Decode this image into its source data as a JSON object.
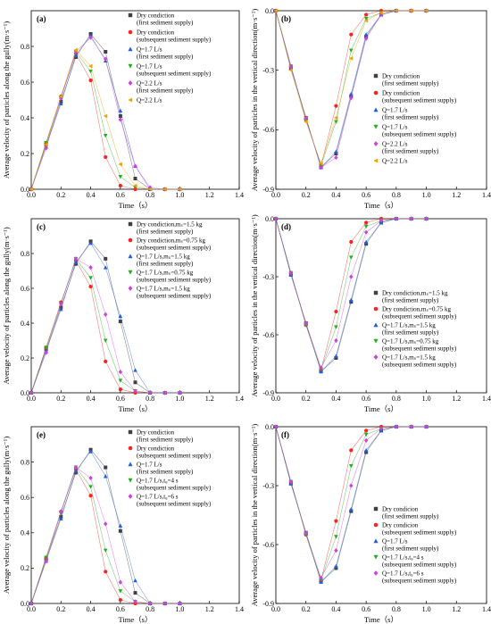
{
  "figure": {
    "x_axis_label": "Time（s）",
    "y_axis_label_left": "Average velocity of particles along the gully(m·s⁻¹)",
    "y_axis_label_right": "Average velocity of particles in the vertical direction(m·s⁻¹)"
  },
  "colors": {
    "dry_first": "#404040",
    "dry_subsequent": "#ff2020",
    "q17_first": "#1f5fe0",
    "q17_subsequent": "#20b020",
    "q22_first": "#d040e0",
    "q22_subsequent": "#f0a000",
    "q17_tg6": "#d040e0"
  },
  "chart_data": [
    {
      "label": "(a)",
      "type": "line",
      "ylim": [
        0,
        1.0
      ],
      "xlim": [
        0,
        1.4
      ],
      "xticks": [
        0.0,
        0.2,
        0.4,
        0.6,
        0.8,
        1.0,
        1.2,
        1.4
      ],
      "yticks": [
        0.0,
        0.2,
        0.4,
        0.6,
        0.8
      ],
      "x": [
        0,
        0.1,
        0.2,
        0.3,
        0.4,
        0.5,
        0.6,
        0.7,
        0.8,
        0.9,
        1.0
      ],
      "series": [
        {
          "name": "Dry condiction",
          "sub": "(first sediment supply)",
          "marker": "square",
          "color_key": "dry_first",
          "values": [
            0,
            0.25,
            0.49,
            0.74,
            0.87,
            0.77,
            0.41,
            0.06,
            0.0,
            0.0,
            0.0
          ]
        },
        {
          "name": "Dry condiction",
          "sub": "(subsequent sediment supply)",
          "marker": "circle",
          "color_key": "dry_subsequent",
          "values": [
            0,
            0.26,
            0.52,
            0.76,
            0.61,
            0.18,
            0.02,
            0.0,
            0.0,
            0.0,
            0.0
          ]
        },
        {
          "name": "Q=1.7 L/s",
          "sub": "(first sediment supply)",
          "marker": "triangle-up",
          "color_key": "q17_first",
          "values": [
            0,
            0.24,
            0.48,
            0.75,
            0.86,
            0.72,
            0.44,
            0.13,
            0.0,
            0.0,
            0.0
          ]
        },
        {
          "name": "Q=1.7 L/s",
          "sub": "(subsequent sediment supply)",
          "marker": "triangle-down",
          "color_key": "q17_subsequent",
          "values": [
            0,
            0.26,
            0.51,
            0.77,
            0.66,
            0.3,
            0.07,
            0.01,
            0.0,
            0.0,
            0.0
          ]
        },
        {
          "name": "Q=2.2 L/s",
          "sub": "(first sediment supply)",
          "marker": "diamond",
          "color_key": "q22_first",
          "values": [
            0,
            0.23,
            0.51,
            0.77,
            0.85,
            0.73,
            0.39,
            0.13,
            0.01,
            0.0,
            0.0
          ]
        },
        {
          "name": "Q=2.2 L/s",
          "sub": "",
          "marker": "triangle-left",
          "color_key": "q22_subsequent",
          "values": [
            0,
            0.25,
            0.52,
            0.78,
            0.69,
            0.41,
            0.14,
            0.02,
            0.0,
            0.0,
            0.0
          ]
        }
      ]
    },
    {
      "label": "(b)",
      "type": "line",
      "ylim": [
        -0.9,
        0.0
      ],
      "xlim": [
        0,
        1.4
      ],
      "xticks": [
        0.0,
        0.2,
        0.4,
        0.6,
        0.8,
        1.0,
        1.2,
        1.4
      ],
      "yticks": [
        0.0,
        -0.3,
        -0.6,
        -0.9
      ],
      "x": [
        0,
        0.1,
        0.2,
        0.3,
        0.4,
        0.5,
        0.6,
        0.7,
        0.8,
        0.9,
        1.0
      ],
      "series": [
        {
          "name": "Dry condiction",
          "sub": "(first sediment supply)",
          "marker": "square",
          "color_key": "dry_first",
          "values": [
            0,
            -0.29,
            -0.54,
            -0.79,
            -0.72,
            -0.43,
            -0.13,
            -0.02,
            0,
            0,
            0
          ]
        },
        {
          "name": "Dry condiction",
          "sub": "(subsequent sediment supply)",
          "marker": "circle",
          "color_key": "dry_subsequent",
          "values": [
            0,
            -0.28,
            -0.55,
            -0.78,
            -0.48,
            -0.12,
            -0.02,
            0,
            0,
            0,
            0
          ]
        },
        {
          "name": "Q=1.7 L/s",
          "sub": "(first sediment supply)",
          "marker": "triangle-up",
          "color_key": "q17_first",
          "values": [
            0,
            -0.29,
            -0.54,
            -0.79,
            -0.71,
            -0.42,
            -0.12,
            -0.02,
            0,
            0,
            0
          ]
        },
        {
          "name": "Q=1.7 L/s",
          "sub": "(subsequent sediment supply)",
          "marker": "triangle-down",
          "color_key": "q17_subsequent",
          "values": [
            0,
            -0.28,
            -0.55,
            -0.78,
            -0.56,
            -0.2,
            -0.04,
            -0.01,
            0,
            0,
            0
          ]
        },
        {
          "name": "Q=2.2 L/s",
          "sub": "(first sediment supply)",
          "marker": "diamond",
          "color_key": "q22_first",
          "values": [
            0,
            -0.28,
            -0.54,
            -0.79,
            -0.74,
            -0.44,
            -0.14,
            -0.02,
            0,
            0,
            0
          ]
        },
        {
          "name": "Q=2.2 L/s",
          "sub": "",
          "marker": "triangle-left",
          "color_key": "q22_subsequent",
          "values": [
            0,
            -0.3,
            -0.56,
            -0.77,
            -0.54,
            -0.24,
            -0.05,
            -0.01,
            0,
            0,
            0
          ]
        }
      ]
    },
    {
      "label": "(c)",
      "type": "line",
      "ylim": [
        0,
        1.0
      ],
      "xlim": [
        0,
        1.4
      ],
      "xticks": [
        0.0,
        0.2,
        0.4,
        0.6,
        0.8,
        1.0,
        1.2,
        1.4
      ],
      "yticks": [
        0.0,
        0.2,
        0.4,
        0.6,
        0.8
      ],
      "x": [
        0,
        0.1,
        0.2,
        0.3,
        0.4,
        0.5,
        0.6,
        0.7,
        0.8,
        0.9,
        1.0
      ],
      "series": [
        {
          "name": "Dry condiction,mₛ=1.5 kg",
          "sub": "(first sediment supply)",
          "marker": "square",
          "color_key": "dry_first",
          "values": [
            0,
            0.25,
            0.49,
            0.74,
            0.87,
            0.77,
            0.41,
            0.06,
            0.0,
            0.0,
            0.0
          ]
        },
        {
          "name": "Dry condiction,mₛ=0.75 kg",
          "sub": "(subsequent sediment supply)",
          "marker": "circle",
          "color_key": "dry_subsequent",
          "values": [
            0,
            0.26,
            0.52,
            0.76,
            0.61,
            0.18,
            0.02,
            0.0,
            0.0,
            0.0,
            0.0
          ]
        },
        {
          "name": "Q=1.7 L/s,mₛ=1.5 kg",
          "sub": "(first sediment supply)",
          "marker": "triangle-up",
          "color_key": "q17_first",
          "values": [
            0,
            0.24,
            0.48,
            0.75,
            0.86,
            0.72,
            0.44,
            0.13,
            0.0,
            0.0,
            0.0
          ]
        },
        {
          "name": "Q=1.7 L/s,mₛ=0.75 kg",
          "sub": "(subsequent sediment supply)",
          "marker": "triangle-down",
          "color_key": "q17_subsequent",
          "values": [
            0,
            0.26,
            0.51,
            0.77,
            0.66,
            0.3,
            0.07,
            0.01,
            0.0,
            0.0,
            0.0
          ]
        },
        {
          "name": "Q=1.7 L/s,mₛ=1.5 kg",
          "sub": "(subsequent sediment supply)",
          "marker": "diamond",
          "color_key": "q22_first",
          "values": [
            0,
            0.23,
            0.51,
            0.77,
            0.72,
            0.45,
            0.12,
            0.01,
            0.0,
            0.0,
            0.0
          ]
        }
      ]
    },
    {
      "label": "(d)",
      "type": "line",
      "ylim": [
        -0.9,
        0.0
      ],
      "xlim": [
        0,
        1.4
      ],
      "xticks": [
        0.0,
        0.2,
        0.4,
        0.6,
        0.8,
        1.0,
        1.2,
        1.4
      ],
      "yticks": [
        0.0,
        -0.3,
        -0.6,
        -0.9
      ],
      "x": [
        0,
        0.1,
        0.2,
        0.3,
        0.4,
        0.5,
        0.6,
        0.7,
        0.8,
        0.9,
        1.0
      ],
      "series": [
        {
          "name": "Dry condiction,mₛ=1.5 kg",
          "sub": "(first sediment supply)",
          "marker": "square",
          "color_key": "dry_first",
          "values": [
            0,
            -0.29,
            -0.54,
            -0.79,
            -0.72,
            -0.43,
            -0.13,
            -0.02,
            0,
            0,
            0
          ]
        },
        {
          "name": "Dry condiction,mₛ=0.75 kg",
          "sub": "(subsequent sediment supply)",
          "marker": "circle",
          "color_key": "dry_subsequent",
          "values": [
            0,
            -0.28,
            -0.55,
            -0.78,
            -0.48,
            -0.12,
            -0.02,
            0,
            0,
            0,
            0
          ]
        },
        {
          "name": "Q=1.7 L/s,mₛ=1.5 kg",
          "sub": "(first sediment supply)",
          "marker": "triangle-up",
          "color_key": "q17_first",
          "values": [
            0,
            -0.29,
            -0.54,
            -0.79,
            -0.71,
            -0.42,
            -0.12,
            -0.02,
            0,
            0,
            0
          ]
        },
        {
          "name": "Q=1.7 L/s,mₛ=0.75 kg",
          "sub": "(subsequent sediment supply)",
          "marker": "triangle-down",
          "color_key": "q17_subsequent",
          "values": [
            0,
            -0.28,
            -0.55,
            -0.78,
            -0.56,
            -0.2,
            -0.04,
            -0.01,
            0,
            0,
            0
          ]
        },
        {
          "name": "Q=1.7 L/s,mₛ=1.5 kg",
          "sub": "(subsequent sediment supply)",
          "marker": "diamond",
          "color_key": "q22_first",
          "values": [
            0,
            -0.28,
            -0.54,
            -0.77,
            -0.63,
            -0.3,
            -0.07,
            -0.01,
            0,
            0,
            0
          ]
        }
      ]
    },
    {
      "label": "(e)",
      "type": "line",
      "ylim": [
        0,
        1.0
      ],
      "xlim": [
        0,
        1.4
      ],
      "xticks": [
        0.0,
        0.2,
        0.4,
        0.6,
        0.8,
        1.0,
        1.2,
        1.4
      ],
      "yticks": [
        0.0,
        0.2,
        0.4,
        0.6,
        0.8
      ],
      "x": [
        0,
        0.1,
        0.2,
        0.3,
        0.4,
        0.5,
        0.6,
        0.7,
        0.8,
        0.9,
        1.0
      ],
      "series": [
        {
          "name": "Dry condiction",
          "sub": "(first sediment supply)",
          "marker": "square",
          "color_key": "dry_first",
          "values": [
            0,
            0.25,
            0.49,
            0.74,
            0.87,
            0.77,
            0.41,
            0.06,
            0.0,
            0.0,
            0.0
          ]
        },
        {
          "name": "Dry condiction",
          "sub": "(subsequent sediment supply)",
          "marker": "circle",
          "color_key": "dry_subsequent",
          "values": [
            0,
            0.26,
            0.52,
            0.76,
            0.61,
            0.18,
            0.02,
            0.0,
            0.0,
            0.0,
            0.0
          ]
        },
        {
          "name": "Q=1.7 L/s",
          "sub": "(first sediment supply)",
          "marker": "triangle-up",
          "color_key": "q17_first",
          "values": [
            0,
            0.24,
            0.48,
            0.75,
            0.86,
            0.72,
            0.44,
            0.13,
            0.0,
            0.0,
            0.0
          ]
        },
        {
          "name": "Q=1.7 L/s,t₉=4 s",
          "sub": "(subsequent sediment supply)",
          "marker": "triangle-down",
          "color_key": "q17_subsequent",
          "values": [
            0,
            0.26,
            0.51,
            0.77,
            0.66,
            0.3,
            0.07,
            0.01,
            0.0,
            0.0,
            0.0
          ]
        },
        {
          "name": "Q=1.7 L/s,t₉=6 s",
          "sub": "(subsequent sediment supply)",
          "marker": "diamond",
          "color_key": "q17_tg6",
          "values": [
            0,
            0.24,
            0.52,
            0.77,
            0.71,
            0.45,
            0.12,
            0.01,
            0.0,
            0.0,
            0.0
          ]
        }
      ]
    },
    {
      "label": "(f)",
      "type": "line",
      "ylim": [
        -0.9,
        0.0
      ],
      "xlim": [
        0,
        1.4
      ],
      "xticks": [
        0.0,
        0.2,
        0.4,
        0.6,
        0.8,
        1.0,
        1.2,
        1.4
      ],
      "yticks": [
        0.0,
        -0.3,
        -0.6,
        -0.9
      ],
      "x": [
        0,
        0.1,
        0.2,
        0.3,
        0.4,
        0.5,
        0.6,
        0.7,
        0.8,
        0.9,
        1.0
      ],
      "series": [
        {
          "name": "Dry condicion",
          "sub": "(first sediment supply)",
          "marker": "square",
          "color_key": "dry_first",
          "values": [
            0,
            -0.29,
            -0.54,
            -0.79,
            -0.72,
            -0.43,
            -0.13,
            -0.02,
            0,
            0,
            0
          ]
        },
        {
          "name": "Dry condicion",
          "sub": "(subsequent sediment supply)",
          "marker": "circle",
          "color_key": "dry_subsequent",
          "values": [
            0,
            -0.28,
            -0.55,
            -0.78,
            -0.48,
            -0.12,
            -0.02,
            0,
            0,
            0,
            0
          ]
        },
        {
          "name": "Q=1.7 L/s",
          "sub": "(first sediment supply)",
          "marker": "triangle-up",
          "color_key": "q17_first",
          "values": [
            0,
            -0.29,
            -0.54,
            -0.79,
            -0.71,
            -0.42,
            -0.12,
            -0.02,
            0,
            0,
            0
          ]
        },
        {
          "name": "Q=1.7 L/s,t₉=4 s",
          "sub": "(subsequent sediment supply)",
          "marker": "triangle-down",
          "color_key": "q17_subsequent",
          "values": [
            0,
            -0.28,
            -0.55,
            -0.78,
            -0.56,
            -0.2,
            -0.04,
            -0.01,
            0,
            0,
            0
          ]
        },
        {
          "name": "Q=1.7 L/s,t₉=6 s",
          "sub": "(subsequent sediment supply)",
          "marker": "diamond",
          "color_key": "q17_tg6",
          "values": [
            0,
            -0.28,
            -0.54,
            -0.77,
            -0.63,
            -0.3,
            -0.07,
            -0.01,
            0,
            0,
            0
          ]
        }
      ]
    }
  ]
}
